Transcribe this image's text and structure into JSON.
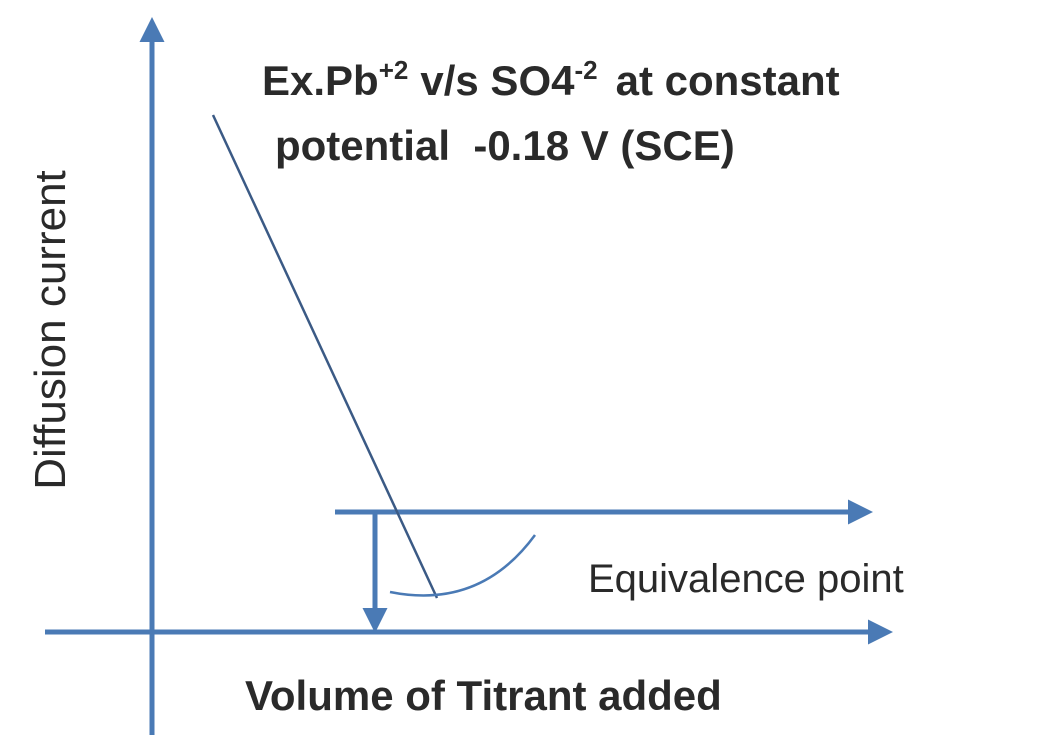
{
  "annotation": {
    "line1": {
      "a": "Ex.Pb",
      "sup1": "+2",
      "b": "v/s SO4",
      "sup2": "-2",
      "c": "at constant"
    },
    "line2": "potential  -0.18 V (SCE)"
  },
  "y_axis_label": "Diffusion current",
  "x_axis_label": "Volume of Titrant added",
  "marker_label": "Equivalence point"
}
